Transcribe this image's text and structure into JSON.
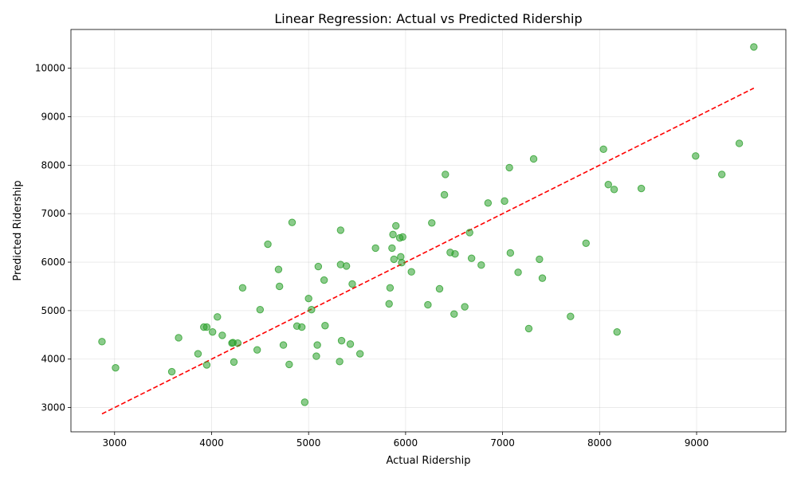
{
  "chart_data": {
    "type": "scatter",
    "title": "Linear Regression: Actual vs Predicted Ridership",
    "xlabel": "Actual Ridership",
    "ylabel": "Predicted Ridership",
    "xlim": [
      2550,
      9920
    ],
    "ylim": [
      2500,
      10800
    ],
    "xticks": [
      3000,
      4000,
      5000,
      6000,
      7000,
      8000,
      9000
    ],
    "yticks": [
      3000,
      4000,
      5000,
      6000,
      7000,
      8000,
      9000,
      10000
    ],
    "grid": true,
    "colors": {
      "points": "#2ca02c",
      "reference_line": "#ff0000"
    },
    "reference_line": {
      "style": "dashed",
      "from": [
        2870,
        2870
      ],
      "to": [
        9590,
        9590
      ]
    },
    "series": [
      {
        "points": [
          [
            2870,
            4360
          ],
          [
            3010,
            3820
          ],
          [
            3590,
            3740
          ],
          [
            3660,
            4440
          ],
          [
            3860,
            4110
          ],
          [
            3920,
            4660
          ],
          [
            3950,
            3880
          ],
          [
            3950,
            4660
          ],
          [
            4010,
            4560
          ],
          [
            4060,
            4870
          ],
          [
            4110,
            4490
          ],
          [
            4210,
            4330
          ],
          [
            4220,
            4340
          ],
          [
            4230,
            3940
          ],
          [
            4270,
            4330
          ],
          [
            4320,
            5470
          ],
          [
            4470,
            4190
          ],
          [
            4500,
            5020
          ],
          [
            4580,
            6370
          ],
          [
            4690,
            5850
          ],
          [
            4700,
            5500
          ],
          [
            4740,
            4290
          ],
          [
            4800,
            3890
          ],
          [
            4830,
            6820
          ],
          [
            4880,
            4680
          ],
          [
            4930,
            4660
          ],
          [
            4960,
            3110
          ],
          [
            5000,
            5250
          ],
          [
            5030,
            5020
          ],
          [
            5080,
            4060
          ],
          [
            5090,
            4290
          ],
          [
            5100,
            5910
          ],
          [
            5160,
            5630
          ],
          [
            5170,
            4690
          ],
          [
            5320,
            3950
          ],
          [
            5330,
            6660
          ],
          [
            5330,
            5950
          ],
          [
            5340,
            4380
          ],
          [
            5390,
            5920
          ],
          [
            5430,
            4310
          ],
          [
            5450,
            5550
          ],
          [
            5530,
            4110
          ],
          [
            5690,
            6290
          ],
          [
            5830,
            5140
          ],
          [
            5840,
            5470
          ],
          [
            5860,
            6290
          ],
          [
            5870,
            6570
          ],
          [
            5880,
            6060
          ],
          [
            5900,
            6750
          ],
          [
            5940,
            6500
          ],
          [
            5950,
            6110
          ],
          [
            5960,
            5990
          ],
          [
            5970,
            6520
          ],
          [
            6060,
            5800
          ],
          [
            6230,
            5120
          ],
          [
            6270,
            6810
          ],
          [
            6350,
            5450
          ],
          [
            6400,
            7390
          ],
          [
            6410,
            7810
          ],
          [
            6460,
            6200
          ],
          [
            6500,
            4930
          ],
          [
            6510,
            6170
          ],
          [
            6610,
            5080
          ],
          [
            6660,
            6610
          ],
          [
            6680,
            6080
          ],
          [
            6780,
            5940
          ],
          [
            6850,
            7220
          ],
          [
            7020,
            7260
          ],
          [
            7070,
            7950
          ],
          [
            7080,
            6190
          ],
          [
            7160,
            5790
          ],
          [
            7270,
            4630
          ],
          [
            7320,
            8130
          ],
          [
            7380,
            6060
          ],
          [
            7410,
            5670
          ],
          [
            7700,
            4880
          ],
          [
            7860,
            6390
          ],
          [
            8040,
            8330
          ],
          [
            8090,
            7600
          ],
          [
            8150,
            7500
          ],
          [
            8180,
            4560
          ],
          [
            8430,
            7520
          ],
          [
            8990,
            8190
          ],
          [
            9260,
            7810
          ],
          [
            9440,
            8450
          ],
          [
            9590,
            10440
          ]
        ]
      }
    ]
  }
}
